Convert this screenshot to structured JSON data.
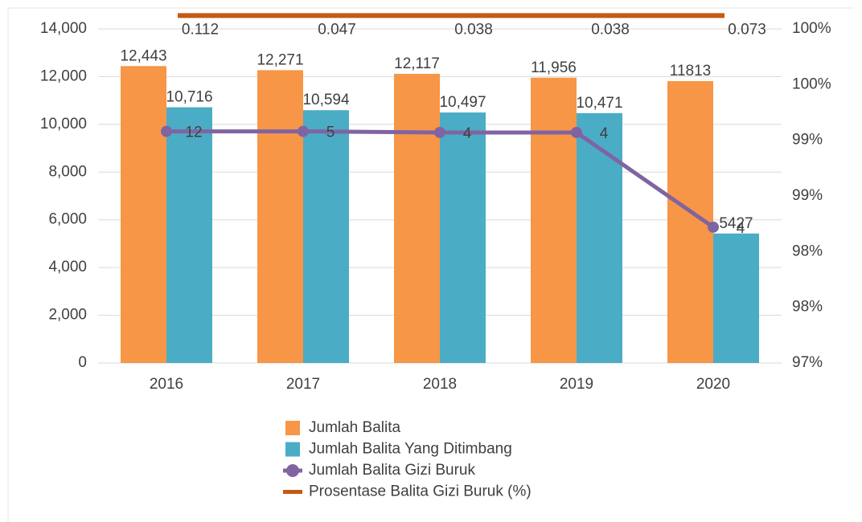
{
  "chart_data": {
    "type": "bar",
    "categories": [
      "2016",
      "2017",
      "2018",
      "2019",
      "2020"
    ],
    "series": [
      {
        "name": "Jumlah Balita",
        "color": "#f79646",
        "values": [
          12443,
          12271,
          12117,
          11956,
          11813
        ],
        "value_labels": [
          "12,443",
          "12,271",
          "12,117",
          "11,956",
          "11813"
        ]
      },
      {
        "name": "Jumlah Balita Yang Ditimbang",
        "color": "#4bacc6",
        "values": [
          10716,
          10594,
          10497,
          10471,
          5427
        ],
        "value_labels": [
          "10,716",
          "10,594",
          "10,497",
          "10,471",
          "5427"
        ]
      },
      {
        "name": "Jumlah Balita Gizi Buruk",
        "type": "line",
        "axis": "y2",
        "color": "#8064a2",
        "marker": "circle",
        "values": [
          99.08,
          99.08,
          99.07,
          99.07,
          98.22
        ],
        "value_labels": [
          "12",
          "5",
          "4",
          "4",
          "4"
        ]
      },
      {
        "name": "Prosentase Balita Gizi Buruk (%)",
        "type": "line",
        "axis": "y2",
        "color": "#c55a11",
        "values": [
          100.12,
          100.12,
          100.12,
          100.12,
          100.12
        ],
        "value_labels": [
          "0.112",
          "0.047",
          "0.038",
          "0.038",
          "0.073"
        ]
      }
    ],
    "ylim": [
      0,
      14000
    ],
    "yticks": [
      0,
      {
        "value": 2000,
        "label": "2,000"
      },
      {
        "value": 4000,
        "label": "4,000"
      },
      {
        "value": 6000,
        "label": "6,000"
      },
      {
        "value": 8000,
        "label": "8,000"
      },
      {
        "value": 10000,
        "label": "10,000"
      },
      {
        "value": 12000,
        "label": "12,000"
      },
      {
        "value": 14000,
        "label": "14,000"
      }
    ],
    "y2lim": [
      97,
      100
    ],
    "y2ticks": [
      {
        "value": 97,
        "label": "97%"
      },
      {
        "value": 97.5,
        "label": "98%"
      },
      {
        "value": 98,
        "label": "98%"
      },
      {
        "value": 98.5,
        "label": "99%"
      },
      {
        "value": 99,
        "label": "99%"
      },
      {
        "value": 99.5,
        "label": "100%"
      },
      {
        "value": 100,
        "label": "100%"
      }
    ],
    "grid": true,
    "legend": "bottom"
  }
}
